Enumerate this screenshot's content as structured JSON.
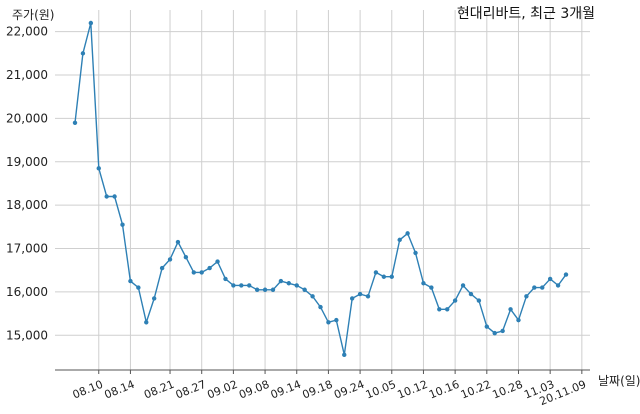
{
  "chart_data": {
    "type": "line",
    "title": "현대리바트, 최근 3개월",
    "ylabel": "주가(원)",
    "xlabel": "날짜(일)",
    "ylim": [
      14200,
      22500
    ],
    "yticks": [
      15000,
      16000,
      17000,
      18000,
      19000,
      20000,
      21000,
      22000
    ],
    "ytick_labels": [
      "15,000",
      "16,000",
      "17,000",
      "18,000",
      "19,000",
      "20,000",
      "21,000",
      "22,000"
    ],
    "xticks": [
      {
        "index": 3,
        "label": "08.10"
      },
      {
        "index": 7,
        "label": "08.14"
      },
      {
        "index": 12,
        "label": "08.21"
      },
      {
        "index": 16,
        "label": "08.27"
      },
      {
        "index": 20,
        "label": "09.02"
      },
      {
        "index": 24,
        "label": "09.08"
      },
      {
        "index": 28,
        "label": "09.14"
      },
      {
        "index": 32,
        "label": "09.18"
      },
      {
        "index": 36,
        "label": "09.24"
      },
      {
        "index": 40,
        "label": "10.05"
      },
      {
        "index": 44,
        "label": "10.12"
      },
      {
        "index": 48,
        "label": "10.16"
      },
      {
        "index": 52,
        "label": "10.22"
      },
      {
        "index": 56,
        "label": "10.28"
      },
      {
        "index": 60,
        "label": "11.03"
      },
      {
        "index": 64,
        "label": "20.11.09"
      }
    ],
    "grid": true,
    "line_color": "#2e80b5",
    "series": [
      {
        "values": [
          19900,
          21500,
          22200,
          18850,
          18200,
          18200,
          17550,
          16250,
          16100,
          15300,
          15850,
          16550,
          16750,
          17150,
          16800,
          16450,
          16450,
          16550,
          16700,
          16300,
          16150,
          16150,
          16150,
          16050,
          16050,
          16050,
          16250,
          16200,
          16150,
          16050,
          15900,
          15650,
          15300,
          15350,
          14550,
          15850,
          15950,
          15900,
          16450,
          16350,
          16350,
          17200,
          17350,
          16900,
          16200,
          16100,
          15600,
          15600,
          15800,
          16150,
          15950,
          15800,
          15200,
          15050,
          15100,
          15600,
          15350,
          15900,
          16100,
          16100,
          16300,
          16150,
          16400
        ]
      }
    ]
  }
}
